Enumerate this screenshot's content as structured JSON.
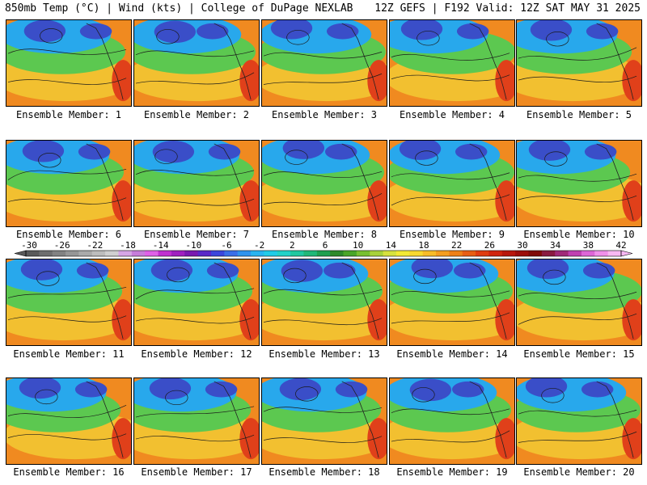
{
  "header": {
    "left": "850mb Temp (°C) | Wind (kts) | College of DuPage NEXLAB",
    "right": "12Z GEFS | F192 Valid: 12Z SAT MAY 31 2025"
  },
  "panels": [
    {
      "member": 1,
      "caption": "Ensemble Member: 1"
    },
    {
      "member": 2,
      "caption": "Ensemble Member: 2"
    },
    {
      "member": 3,
      "caption": "Ensemble Member: 3"
    },
    {
      "member": 4,
      "caption": "Ensemble Member: 4"
    },
    {
      "member": 5,
      "caption": "Ensemble Member: 5"
    },
    {
      "member": 6,
      "caption": "Ensemble Member: 6"
    },
    {
      "member": 7,
      "caption": "Ensemble Member: 7"
    },
    {
      "member": 8,
      "caption": "Ensemble Member: 8"
    },
    {
      "member": 9,
      "caption": "Ensemble Member: 9"
    },
    {
      "member": 10,
      "caption": "Ensemble Member: 10"
    },
    {
      "member": 11,
      "caption": "Ensemble Member: 11"
    },
    {
      "member": 12,
      "caption": "Ensemble Member: 12"
    },
    {
      "member": 13,
      "caption": "Ensemble Member: 13"
    },
    {
      "member": 14,
      "caption": "Ensemble Member: 14"
    },
    {
      "member": 15,
      "caption": "Ensemble Member: 15"
    },
    {
      "member": 16,
      "caption": "Ensemble Member: 16"
    },
    {
      "member": 17,
      "caption": "Ensemble Member: 17"
    },
    {
      "member": 18,
      "caption": "Ensemble Member: 18"
    },
    {
      "member": 19,
      "caption": "Ensemble Member: 19"
    },
    {
      "member": 20,
      "caption": "Ensemble Member: 20"
    }
  ],
  "colorbar": {
    "unit": "°C",
    "labels": [
      "-30",
      "-26",
      "-22",
      "-18",
      "-14",
      "-10",
      "-6",
      "-2",
      "2",
      "6",
      "10",
      "14",
      "18",
      "22",
      "26",
      "30",
      "34",
      "38",
      "42"
    ],
    "colors": [
      "#5a5a5a",
      "#6e6e6e",
      "#828282",
      "#969696",
      "#aaaaaa",
      "#bdbdbd",
      "#d0d0d0",
      "#d6a6e6",
      "#c77ddb",
      "#e060e8",
      "#c030d0",
      "#a020c0",
      "#7a1ab0",
      "#5a28c8",
      "#3c46dc",
      "#3a6ee8",
      "#2f93ee",
      "#28b4f0",
      "#20cce8",
      "#22d2c8",
      "#20c8a0",
      "#20b878",
      "#1fa050",
      "#2e8a2a",
      "#4aa628",
      "#78c030",
      "#a8d23a",
      "#d6e23e",
      "#f2ea34",
      "#f8d830",
      "#f8bc28",
      "#f49e20",
      "#ee8018",
      "#e85e14",
      "#e03c10",
      "#d0240e",
      "#b8160c",
      "#9c0e0a",
      "#800a08",
      "#8a1a40",
      "#a02a78",
      "#c040b0",
      "#de66d6",
      "#f090ea",
      "#f8b8f2"
    ]
  },
  "map_palette": {
    "cold": "#3a4ec8",
    "cool": "#28a8ec",
    "mild": "#5cc850",
    "warm": "#f2c030",
    "hot": "#f08a20",
    "very_hot": "#e0401a",
    "contour": "#1a1a1a",
    "coast": "#202020"
  }
}
